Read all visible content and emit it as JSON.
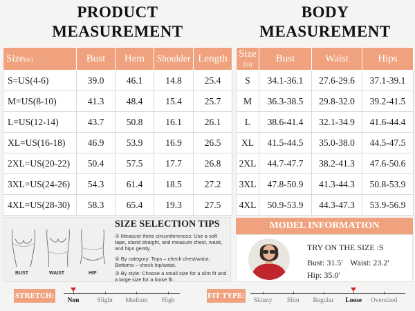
{
  "product": {
    "title_line1": "PRODUCT",
    "title_line2": "MEASUREMENT",
    "headers": {
      "size": "Size",
      "size_unit": "(in)",
      "bust": "Bust",
      "hem": "Hem",
      "shoulder": "Shoulder",
      "length": "Length"
    },
    "rows": [
      [
        "S=US(4-6)",
        "39.0",
        "46.1",
        "14.8",
        "25.4"
      ],
      [
        "M=US(8-10)",
        "41.3",
        "48.4",
        "15.4",
        "25.7"
      ],
      [
        "L=US(12-14)",
        "43.7",
        "50.8",
        "16.1",
        "26.1"
      ],
      [
        "XL=US(16-18)",
        "46.9",
        "53.9",
        "16.9",
        "26.5"
      ],
      [
        "2XL=US(20-22)",
        "50.4",
        "57.5",
        "17.7",
        "26.8"
      ],
      [
        "3XL=US(24-26)",
        "54.3",
        "61.4",
        "18.5",
        "27.2"
      ],
      [
        "4XL=US(28-30)",
        "58.3",
        "65.4",
        "19.3",
        "27.5"
      ]
    ]
  },
  "body": {
    "title_line1": "BODY",
    "title_line2": "MEASUREMENT",
    "headers": {
      "size": "Size",
      "size_unit": "(in)",
      "bust": "Bust",
      "waist": "Waist",
      "hips": "Hips"
    },
    "rows": [
      [
        "S",
        "34.1-36.1",
        "27.6-29.6",
        "37.1-39.1"
      ],
      [
        "M",
        "36.3-38.5",
        "29.8-32.0",
        "39.2-41.5"
      ],
      [
        "L",
        "38.6-41.4",
        "32.1-34.9",
        "41.6-44.4"
      ],
      [
        "XL",
        "41.5-44.5",
        "35.0-38.0",
        "44.5-47.5"
      ],
      [
        "2XL",
        "44.7-47.7",
        "38.2-41.3",
        "47.6-50.6"
      ],
      [
        "3XL",
        "47.8-50.9",
        "41.3-44.3",
        "50.8-53.9"
      ],
      [
        "4XL",
        "50.9-53.9",
        "44.3-47.3",
        "53.9-56.9"
      ]
    ]
  },
  "tips": {
    "title": "SIZE SELECTION TIPS",
    "items": [
      "① Measure three circumferences: Use a soft tape, stand straight, and measure chest, waist, and hips gently.",
      "② By category: Tops – check chest/waist; Bottoms – check hip/waist.",
      "③ By style: Choose a small size for a slim fit and a large size for a loose fit."
    ],
    "figures": {
      "bust": "BUST",
      "waist": "WAIST",
      "hip": "HIP"
    }
  },
  "model": {
    "header": "MODEL INFORMATION",
    "try_on": "TRY ON THE SIZE :S",
    "bust": "Bust: 31.5'",
    "waist": "Waist: 23.2'",
    "hip": "Hip: 35.0'",
    "shirt_color": "#c0262d"
  },
  "stretch": {
    "label": "STRETCH:",
    "options": [
      "Non",
      "Slight",
      "Medium",
      "High"
    ],
    "selected": "Non"
  },
  "fit": {
    "label": "FIT TYPE:",
    "options": [
      "Skinny",
      "Slim",
      "Regular",
      "Loose",
      "Oversized"
    ],
    "selected": "Loose"
  },
  "colors": {
    "accent": "#efa27d",
    "marker": "#d2232a"
  }
}
